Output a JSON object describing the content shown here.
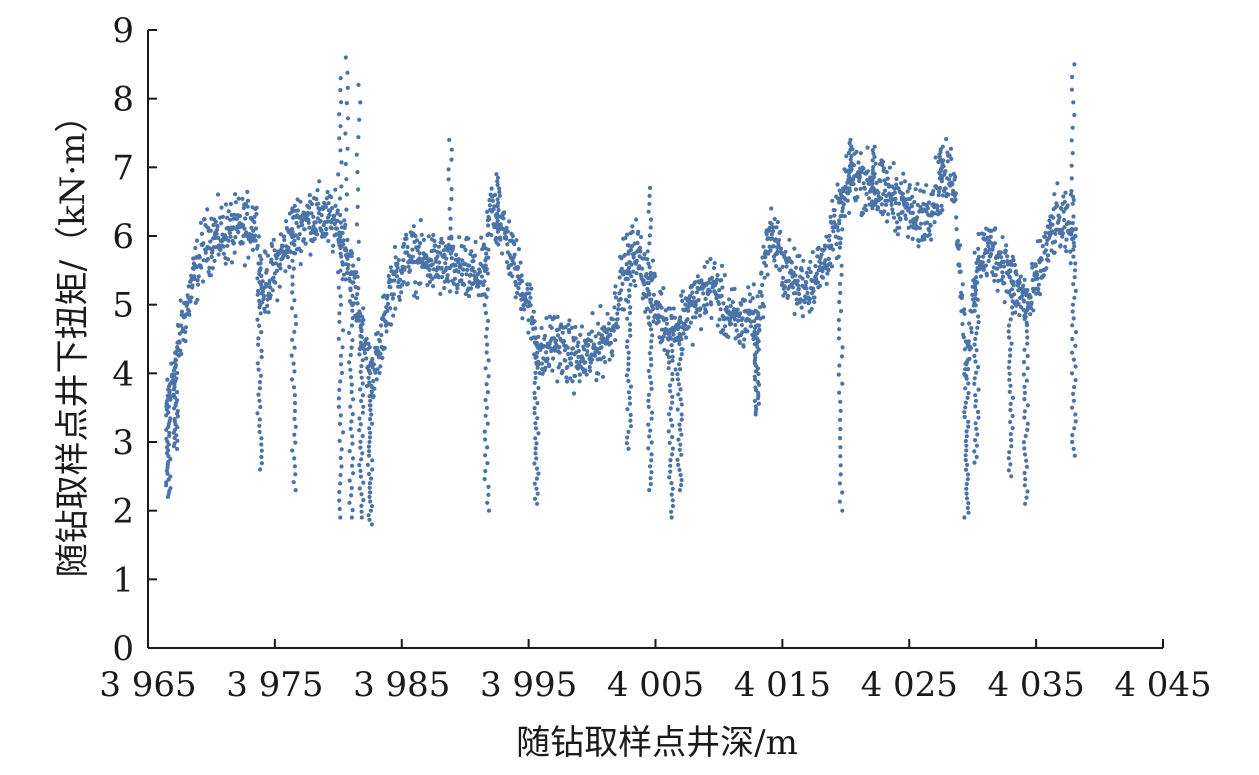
{
  "chart_data": {
    "type": "scatter",
    "xlabel": "随钻取样点井深/m",
    "ylabel": "随钻取样点井下扭矩/（kN·m）",
    "xlim": [
      3965,
      4045
    ],
    "ylim": [
      0,
      9
    ],
    "x_ticks": [
      3965,
      3975,
      3985,
      3995,
      4005,
      4015,
      4025,
      4035,
      4045
    ],
    "x_tick_labels": [
      "3 965",
      "3 975",
      "3 985",
      "3 995",
      "4 005",
      "4 015",
      "4 025",
      "4 035",
      "4 045"
    ],
    "y_ticks": [
      0,
      1,
      2,
      3,
      4,
      5,
      6,
      7,
      8,
      9
    ],
    "y_tick_labels": [
      "0",
      "1",
      "2",
      "3",
      "4",
      "5",
      "6",
      "7",
      "8",
      "9"
    ],
    "grid": false,
    "legend": "none",
    "marker_color": "#4a73a8",
    "series": [
      {
        "x_range": [
          3966.5,
          4038
        ],
        "trend": [
          [
            3966.5,
            3.5
          ],
          [
            3967.5,
            4.5
          ],
          [
            3968.5,
            5.3
          ],
          [
            3969.5,
            5.9
          ],
          [
            3970.5,
            6.0
          ],
          [
            3971.5,
            6.05
          ],
          [
            3972.5,
            6.1
          ],
          [
            3973.5,
            6.2
          ],
          [
            3974.0,
            5.2
          ],
          [
            3975.0,
            5.5
          ],
          [
            3976.5,
            6.1
          ],
          [
            3978.0,
            6.3
          ],
          [
            3979.5,
            6.2
          ],
          [
            3980.5,
            5.9
          ],
          [
            3981.5,
            5.0
          ],
          [
            3982.5,
            4.0
          ],
          [
            3983.2,
            4.2
          ],
          [
            3984.0,
            5.2
          ],
          [
            3985.5,
            5.7
          ],
          [
            3987.5,
            5.6
          ],
          [
            3989.5,
            5.5
          ],
          [
            3991.5,
            5.4
          ],
          [
            3992.0,
            6.4
          ],
          [
            3993.0,
            6.1
          ],
          [
            3994.0,
            5.5
          ],
          [
            3995.0,
            5.0
          ],
          [
            3996.0,
            4.2
          ],
          [
            3997.0,
            4.5
          ],
          [
            3998.0,
            4.3
          ],
          [
            3999.0,
            4.2
          ],
          [
            4000.0,
            4.3
          ],
          [
            4001.5,
            4.6
          ],
          [
            4002.5,
            5.5
          ],
          [
            4003.5,
            5.8
          ],
          [
            4004.5,
            5.2
          ],
          [
            4005.5,
            4.8
          ],
          [
            4006.5,
            4.6
          ],
          [
            4007.5,
            4.9
          ],
          [
            4008.5,
            5.1
          ],
          [
            4009.5,
            5.3
          ],
          [
            4010.5,
            4.9
          ],
          [
            4011.5,
            4.7
          ],
          [
            4012.5,
            4.9
          ],
          [
            4013.0,
            4.7
          ],
          [
            4014.0,
            6.1
          ],
          [
            4015.0,
            5.6
          ],
          [
            4016.0,
            5.3
          ],
          [
            4017.0,
            5.3
          ],
          [
            4018.0,
            5.5
          ],
          [
            4019.0,
            6.0
          ],
          [
            4020.5,
            6.9
          ],
          [
            4021.5,
            6.8
          ],
          [
            4022.5,
            6.6
          ],
          [
            4023.5,
            6.6
          ],
          [
            4024.5,
            6.5
          ],
          [
            4025.5,
            6.2
          ],
          [
            4026.5,
            6.4
          ],
          [
            4027.5,
            6.8
          ],
          [
            4028.5,
            6.9
          ],
          [
            4029.5,
            4.2
          ],
          [
            4030.5,
            5.7
          ],
          [
            4031.5,
            5.8
          ],
          [
            4032.5,
            5.6
          ],
          [
            4033.5,
            5.2
          ],
          [
            4034.5,
            5.0
          ],
          [
            4035.5,
            5.6
          ],
          [
            4036.5,
            6.2
          ],
          [
            4037.5,
            6.1
          ]
        ],
        "dips": [
          [
            3966.6,
            2.2
          ],
          [
            3967.2,
            2.9
          ],
          [
            3973.8,
            2.6
          ],
          [
            3976.5,
            2.3
          ],
          [
            3980.2,
            1.9
          ],
          [
            3981.0,
            1.9
          ],
          [
            3981.8,
            1.9
          ],
          [
            3982.5,
            1.8
          ],
          [
            3991.7,
            2.0
          ],
          [
            3995.6,
            2.1
          ],
          [
            4002.9,
            2.9
          ],
          [
            4004.6,
            2.3
          ],
          [
            4006.2,
            1.9
          ],
          [
            4006.9,
            2.3
          ],
          [
            4013.0,
            3.4
          ],
          [
            4019.6,
            2.0
          ],
          [
            4029.5,
            1.9
          ],
          [
            4030.3,
            2.7
          ],
          [
            4033.0,
            2.5
          ],
          [
            4034.2,
            2.1
          ],
          [
            4038.0,
            2.8
          ]
        ],
        "spikes": [
          [
            3980.1,
            8.3
          ],
          [
            3980.7,
            8.6
          ],
          [
            3981.6,
            8.2
          ],
          [
            3988.8,
            7.4
          ],
          [
            3992.6,
            6.9
          ],
          [
            4004.5,
            6.7
          ],
          [
            4020.3,
            7.4
          ],
          [
            4022.2,
            7.3
          ],
          [
            4027.5,
            7.3
          ],
          [
            4037.9,
            8.5
          ]
        ]
      }
    ]
  }
}
